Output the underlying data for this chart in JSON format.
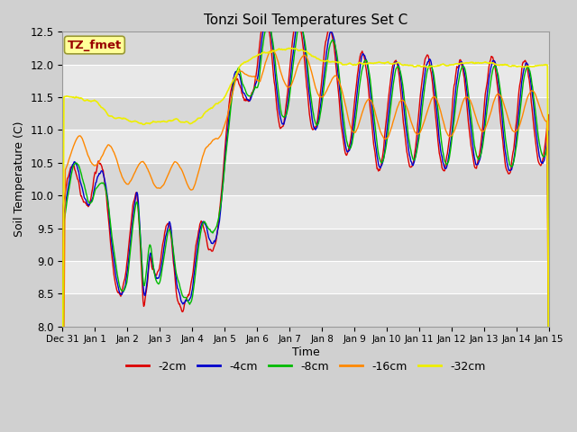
{
  "title": "Tonzi Soil Temperatures Set C",
  "xlabel": "Time",
  "ylabel": "Soil Temperature (C)",
  "ylim": [
    8.0,
    12.5
  ],
  "xlim": [
    0,
    15
  ],
  "annotation_text": "TZ_fmet",
  "annotation_color": "#990000",
  "annotation_bg": "#ffff99",
  "annotation_border": "#999933",
  "colors": {
    "-2cm": "#dd0000",
    "-4cm": "#0000cc",
    "-8cm": "#00bb00",
    "-16cm": "#ff8800",
    "-32cm": "#eeee00"
  },
  "legend_labels": [
    "-2cm",
    "-4cm",
    "-8cm",
    "-16cm",
    "-32cm"
  ],
  "fig_facecolor": "#d0d0d0",
  "plot_facecolor": "#e8e8e8",
  "grid_color": "#ffffff",
  "band_colors": [
    "#d8d8d8",
    "#e8e8e8"
  ],
  "tick_labels": [
    "Dec 31",
    "Jan 1",
    "Jan 2",
    "Jan 3",
    "Jan 4",
    "Jan 5",
    "Jan 6",
    "Jan 7",
    "Jan 8",
    "Jan 9",
    "Jan 10",
    "Jan 11",
    "Jan 12",
    "Jan 13",
    "Jan 14",
    "Jan 15"
  ],
  "figsize": [
    6.4,
    4.8
  ],
  "dpi": 100
}
